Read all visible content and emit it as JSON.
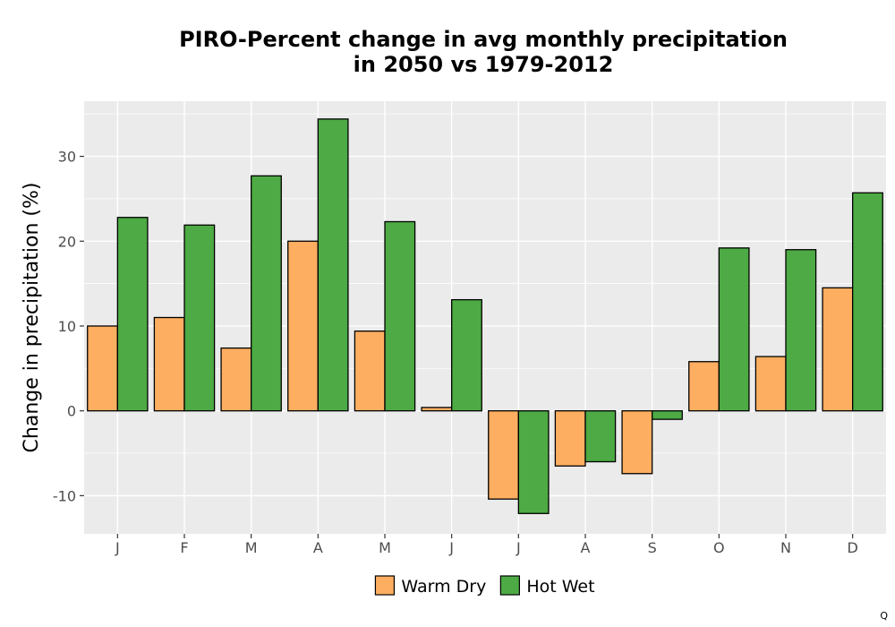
{
  "chart_data": {
    "type": "bar",
    "title_lines": [
      "PIRO-Percent change in avg monthly precipitation",
      "in 2050 vs 1979-2012"
    ],
    "xlabel": "",
    "ylabel": "Change in precipitation (%)",
    "categories": [
      "J",
      "F",
      "M",
      "A",
      "M",
      "J",
      "J",
      "A",
      "S",
      "O",
      "N",
      "D"
    ],
    "series": [
      {
        "name": "Warm Dry",
        "color": "#FDAE61",
        "values": [
          10.0,
          11.0,
          7.4,
          20.0,
          9.4,
          0.4,
          -10.4,
          -6.5,
          -7.4,
          5.8,
          6.4,
          14.5
        ]
      },
      {
        "name": "Hot Wet",
        "color": "#4DAA44",
        "values": [
          22.8,
          21.9,
          27.7,
          34.4,
          22.3,
          13.1,
          -12.1,
          -6.0,
          -1.0,
          19.2,
          19.0,
          25.7
        ]
      }
    ],
    "ylim": [
      -14.5,
      36.5
    ],
    "yticks": [
      -10,
      0,
      10,
      20,
      30
    ],
    "ytick_labels": [
      "-10",
      "0",
      "10",
      "20",
      "30"
    ],
    "grid": true,
    "panel_background": "#EBEBEB",
    "legend_position": "bottom"
  },
  "corner_mark": "Q"
}
